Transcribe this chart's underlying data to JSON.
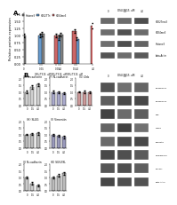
{
  "panel_a": {
    "title": "A.",
    "groups": [
      {
        "label": "Histone3",
        "color": "#888888",
        "bars": [
          1.0,
          1.05,
          1.02
        ],
        "errors": [
          0.05,
          0.08,
          0.06
        ],
        "x_labels": [
          "0",
          "1.5",
          "4.0"
        ]
      },
      {
        "label": "H3K27Tri",
        "color": "#6699cc",
        "bars": [
          1.0,
          0.92,
          0.88
        ],
        "errors": [
          0.06,
          0.07,
          0.05
        ],
        "x_labels": [
          "0",
          "1.5",
          "4.0"
        ]
      },
      {
        "label": "H3K4me3",
        "color": "#cc6666",
        "bars": [
          1.0,
          1.15,
          1.35
        ],
        "errors": [
          0.05,
          0.07,
          0.09
        ],
        "x_labels": [
          "0",
          "1.5",
          "4.0"
        ]
      }
    ],
    "ylabel": "Relative protein expression",
    "xlabel": "OSU-T315, uM",
    "ylim": [
      0,
      1.8
    ]
  },
  "panel_b": {
    "title": "B.",
    "subpanels": [
      {
        "label": "E-cadherin",
        "color": "#cccccc",
        "bars": [
          1.0,
          1.35,
          1.55
        ],
        "errors": [
          0.08,
          0.12,
          0.1
        ],
        "x_labels": [
          "0",
          "1.5",
          "4.0"
        ]
      },
      {
        "label": "N-cadherin",
        "color": "#aaaacc",
        "bars": [
          1.0,
          0.95,
          0.88
        ],
        "errors": [
          0.07,
          0.08,
          0.06
        ],
        "x_labels": [
          "0",
          "1.5",
          "4.0"
        ]
      },
      {
        "label": "Zeb",
        "color": "#cc9999",
        "bars": [
          1.0,
          1.0,
          0.95
        ],
        "errors": [
          0.06,
          0.07,
          0.08
        ],
        "x_labels": [
          "0",
          "1.5",
          "4.0"
        ]
      },
      {
        "label": "SLUG",
        "color": "#bbbbbb",
        "bars": [
          1.0,
          1.05,
          1.08
        ],
        "errors": [
          0.05,
          0.06,
          0.07
        ],
        "x_labels": [
          "0",
          "1.5",
          "4.0"
        ]
      },
      {
        "label": "Vimentin",
        "color": "#9999bb",
        "bars": [
          1.0,
          0.9,
          0.82
        ],
        "errors": [
          0.06,
          0.07,
          0.08
        ],
        "x_labels": [
          "0",
          "1.5",
          "4.0"
        ]
      },
      {
        "label": "N-cadherin2",
        "color": "#cccccc",
        "bars": [
          1.0,
          0.55,
          0.4
        ],
        "errors": [
          0.07,
          0.08,
          0.06
        ],
        "x_labels": [
          "0",
          "1.5",
          "4.0"
        ]
      },
      {
        "label": "SUV39L",
        "color": "#bbbbbb",
        "bars": [
          1.0,
          1.15,
          1.3
        ],
        "errors": [
          0.06,
          0.08,
          0.09
        ],
        "x_labels": [
          "0",
          "1.5",
          "4.0"
        ]
      }
    ]
  },
  "wb_a_labels": [
    "H3K27me3",
    "H3K4me3",
    "Histone3",
    "beta-Actin"
  ],
  "wb_b_labels": [
    "E-cadherin1",
    "E-cadherin2",
    "Zeb",
    "N-Zeb",
    "Vimentin",
    "N-cadherin3",
    "SUV39L",
    "beta-Actin"
  ],
  "wb_header": "OSU-T315, uM",
  "wb_doses": [
    "0",
    "1.5",
    "4.0"
  ],
  "figure_bg": "#ffffff"
}
